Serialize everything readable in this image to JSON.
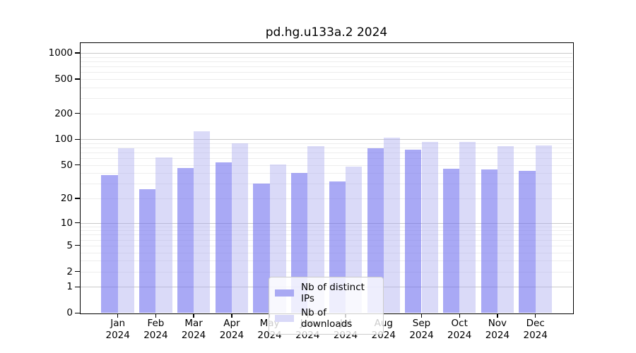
{
  "title": "pd.hg.u133a.2 2024",
  "chart_data": {
    "type": "bar",
    "title": "pd.hg.u133a.2 2024",
    "categories": [
      "Jan",
      "Feb",
      "Mar",
      "Apr",
      "May",
      "Jun",
      "Jul",
      "Aug",
      "Sep",
      "Oct",
      "Nov",
      "Dec"
    ],
    "x_tick_year": "2024",
    "series": [
      {
        "name": "Nb of distinct IPs",
        "values": [
          38,
          26,
          46,
          54,
          30,
          40,
          32,
          78,
          76,
          45,
          44,
          43
        ],
        "bar_color": "rgba(112,112,238,0.6)",
        "legend_color": "#a9a9f3"
      },
      {
        "name": "Nb of downloads",
        "values": [
          78,
          61,
          124,
          90,
          51,
          84,
          48,
          105,
          94,
          93,
          83,
          85
        ],
        "bar_color": "rgba(170,170,240,0.44)",
        "legend_color": "#d9d9f8"
      }
    ],
    "yscale": "log1p",
    "xlabel": "",
    "ylabel": "",
    "y_ticks": [
      0,
      1,
      2,
      5,
      10,
      20,
      50,
      100,
      200,
      500,
      1000
    ],
    "y_minor_ticks": [
      2,
      3,
      4,
      5,
      6,
      7,
      8,
      9,
      20,
      30,
      40,
      50,
      60,
      70,
      80,
      90,
      200,
      300,
      400,
      500,
      600,
      700,
      800,
      900
    ],
    "ylim": [
      0,
      1300
    ],
    "grid": true,
    "legend_position": "lower center"
  },
  "colors": {
    "background": "#ffffff",
    "axis": "#000000",
    "text": "#000000",
    "major_grid": "#c9c9c9",
    "minor_grid": "#ededed",
    "legend_border": "#cccccc",
    "legend_bg": "rgba(255,255,255,0.8)"
  }
}
